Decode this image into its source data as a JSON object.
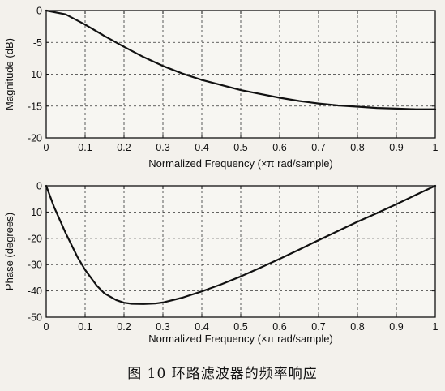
{
  "chart_data": [
    {
      "type": "line",
      "xlabel": "Normalized Frequency  (×π rad/sample)",
      "ylabel": "Magnitude (dB)",
      "xlim": [
        0,
        1
      ],
      "ylim": [
        -20,
        0
      ],
      "xticks": [
        "0",
        "0.1",
        "0.2",
        "0.3",
        "0.4",
        "0.5",
        "0.6",
        "0.7",
        "0.8",
        "0.9",
        "1"
      ],
      "yticks": [
        "0",
        "-5",
        "-10",
        "-15",
        "-20"
      ],
      "grid": true,
      "series": [
        {
          "x": [
            0,
            0.05,
            0.1,
            0.15,
            0.2,
            0.25,
            0.3,
            0.35,
            0.4,
            0.45,
            0.5,
            0.55,
            0.6,
            0.65,
            0.7,
            0.75,
            0.8,
            0.85,
            0.9,
            0.95,
            1.0
          ],
          "values": [
            0,
            -0.6,
            -2.2,
            -4.0,
            -5.7,
            -7.3,
            -8.7,
            -9.9,
            -10.9,
            -11.7,
            -12.5,
            -13.1,
            -13.7,
            -14.2,
            -14.6,
            -14.9,
            -15.1,
            -15.3,
            -15.4,
            -15.5,
            -15.5
          ]
        }
      ]
    },
    {
      "type": "line",
      "xlabel": "Normalized Frequency  (×π rad/sample)",
      "ylabel": "Phase (degrees)",
      "xlim": [
        0,
        1
      ],
      "ylim": [
        -50,
        0
      ],
      "xticks": [
        "0",
        "0.1",
        "0.2",
        "0.3",
        "0.4",
        "0.5",
        "0.6",
        "0.7",
        "0.8",
        "0.9",
        "1"
      ],
      "yticks": [
        "0",
        "-10",
        "-20",
        "-30",
        "-40",
        "-50"
      ],
      "grid": true,
      "series": [
        {
          "x": [
            0,
            0.02,
            0.05,
            0.08,
            0.1,
            0.13,
            0.15,
            0.18,
            0.2,
            0.22,
            0.25,
            0.28,
            0.3,
            0.35,
            0.4,
            0.45,
            0.5,
            0.55,
            0.6,
            0.65,
            0.7,
            0.75,
            0.8,
            0.85,
            0.9,
            0.95,
            1.0
          ],
          "values": [
            0,
            -8,
            -18,
            -27,
            -32,
            -38,
            -41,
            -43.5,
            -44.5,
            -44.9,
            -45,
            -44.8,
            -44.4,
            -42.6,
            -40.2,
            -37.5,
            -34.5,
            -31.2,
            -27.8,
            -24.3,
            -20.7,
            -17.2,
            -13.7,
            -10.4,
            -7.0,
            -3.5,
            0
          ]
        }
      ]
    }
  ],
  "caption": "图 10  环路滤波器的频率响应"
}
